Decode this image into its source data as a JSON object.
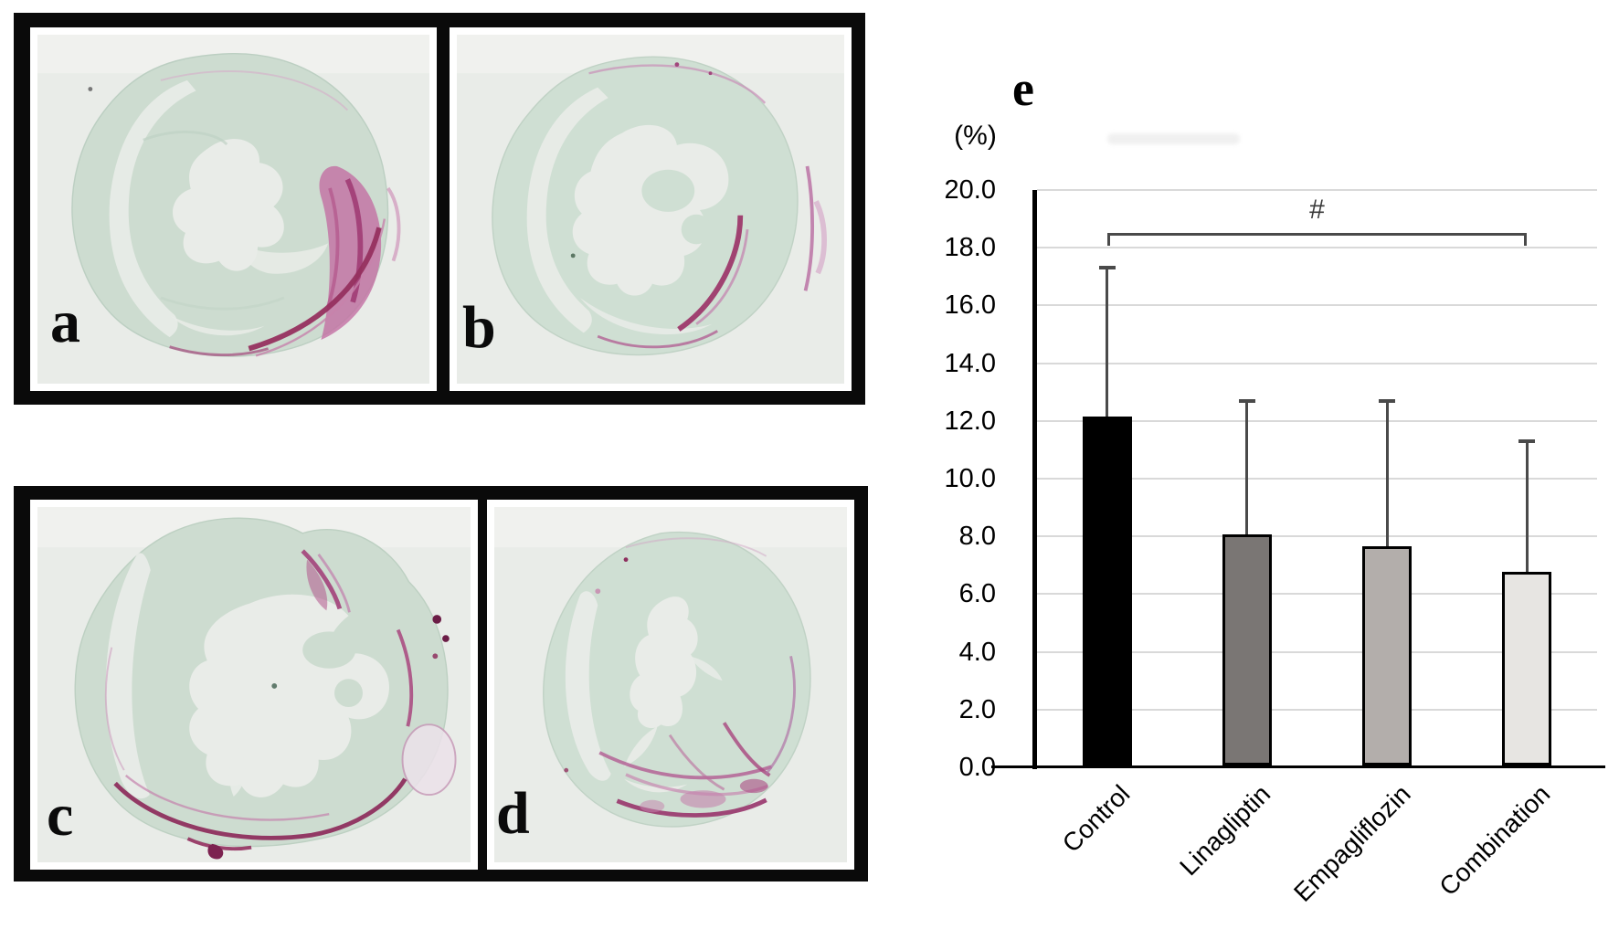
{
  "figure": {
    "panels": [
      {
        "label": "a"
      },
      {
        "label": "b"
      },
      {
        "label": "c"
      },
      {
        "label": "d"
      }
    ],
    "chart_panel_label": "e"
  },
  "chart_data": {
    "type": "bar",
    "title": "",
    "unit_label": "(%)",
    "categories": [
      "Control",
      "Linagliptin",
      "Empagliflozin",
      "Combination"
    ],
    "values": [
      12.1,
      8.0,
      7.6,
      6.7
    ],
    "error_plus": [
      5.2,
      4.7,
      5.1,
      4.6
    ],
    "bar_colors": [
      "#000000",
      "#7a7674",
      "#b3aeab",
      "#e7e5e2"
    ],
    "ylim": [
      0,
      20
    ],
    "ytick_step": 2,
    "ytick_decimals": 1,
    "grid": true,
    "legend_position": "none",
    "significance": {
      "from": "Control",
      "to": "Combination",
      "label": "#",
      "y_value": 18.5
    },
    "style_colors": {
      "gridline": "#d9d9d9",
      "axis": "#000000",
      "error_bar": "#4a4a4a"
    }
  }
}
